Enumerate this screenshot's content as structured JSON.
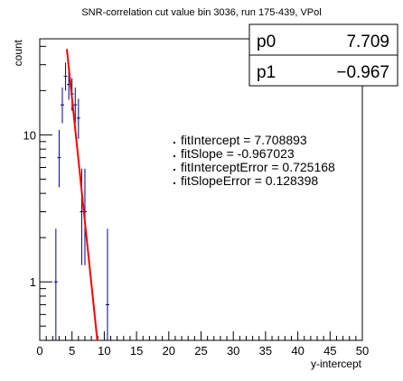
{
  "chart_data": {
    "type": "scatter",
    "title": "SNR-correlation cut value bin 3036, run 175-439, VPol",
    "xlabel": "y-intercept",
    "ylabel": "count",
    "xlim": [
      0,
      50
    ],
    "ylim": [
      0.4,
      45
    ],
    "yscale": "log",
    "x_ticks": [
      "0",
      "5",
      "10",
      "15",
      "20",
      "25",
      "30",
      "35",
      "40",
      "45",
      "50"
    ],
    "y_ticks": [
      {
        "value": 1,
        "label": "1"
      },
      {
        "value": 10,
        "label": "10"
      }
    ],
    "grid": false,
    "points": [
      {
        "x": 2.5,
        "y": 1,
        "err_low": 0.6,
        "err_high": 1.3
      },
      {
        "x": 3.0,
        "y": 7,
        "err_low": 2.6,
        "err_high": 3.8
      },
      {
        "x": 3.5,
        "y": 16,
        "err_low": 4,
        "err_high": 5
      },
      {
        "x": 4.0,
        "y": 25,
        "err_low": 5,
        "err_high": 6
      },
      {
        "x": 4.5,
        "y": 22,
        "err_low": 4.7,
        "err_high": 5.7
      },
      {
        "x": 5.0,
        "y": 19,
        "err_low": 4.4,
        "err_high": 5.3
      },
      {
        "x": 5.5,
        "y": 16,
        "err_low": 4,
        "err_high": 5
      },
      {
        "x": 6.0,
        "y": 13,
        "err_low": 3.6,
        "err_high": 4.6
      },
      {
        "x": 6.5,
        "y": 3,
        "err_low": 1.7,
        "err_high": 2.9
      },
      {
        "x": 7.0,
        "y": 3,
        "err_low": 1.7,
        "err_high": 2.9
      },
      {
        "x": 10.5,
        "y": 0.7,
        "err_low": 0.3,
        "err_high": 1.6
      }
    ],
    "fit": {
      "intercept": 7.708893,
      "slope": -0.967023,
      "x_range": [
        4.2,
        9.0
      ],
      "color": "#ff0000"
    },
    "marker_color": "#00007f",
    "stats_box": {
      "rows": [
        {
          "name": "p0",
          "value": "7.709"
        },
        {
          "name": "p1",
          "value": "−0.967"
        }
      ]
    },
    "annotations": [
      "fitIntercept = 7.708893",
      "fitSlope = -0.967023",
      "fitInterceptError = 0.725168",
      "fitSlopeError = 0.128398"
    ]
  }
}
